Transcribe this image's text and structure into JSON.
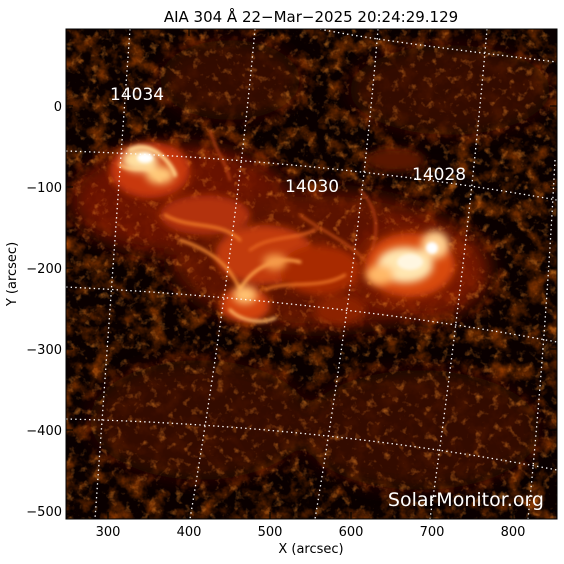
{
  "title": "AIA 304 Å 22−Mar−2025 20:24:29.129",
  "x_axis": {
    "label": "X (arcsec)",
    "ticks": [
      "300",
      "400",
      "500",
      "600",
      "700",
      "800"
    ]
  },
  "y_axis": {
    "label": "Y (arcsec)",
    "ticks": [
      "0",
      "−100",
      "−200",
      "−300",
      "−400",
      "−500"
    ]
  },
  "active_regions": [
    {
      "id": "ar-14034",
      "label": "14034"
    },
    {
      "id": "ar-14030",
      "label": "14030"
    },
    {
      "id": "ar-14028",
      "label": "14028"
    }
  ],
  "watermark": "SolarMonitor.org",
  "colors": {
    "background": "#000000",
    "plasma_low": "#5a0c00",
    "plasma_mid": "#d2430a",
    "plasma_high": "#ffe6b0",
    "grid": "#ffffff"
  }
}
